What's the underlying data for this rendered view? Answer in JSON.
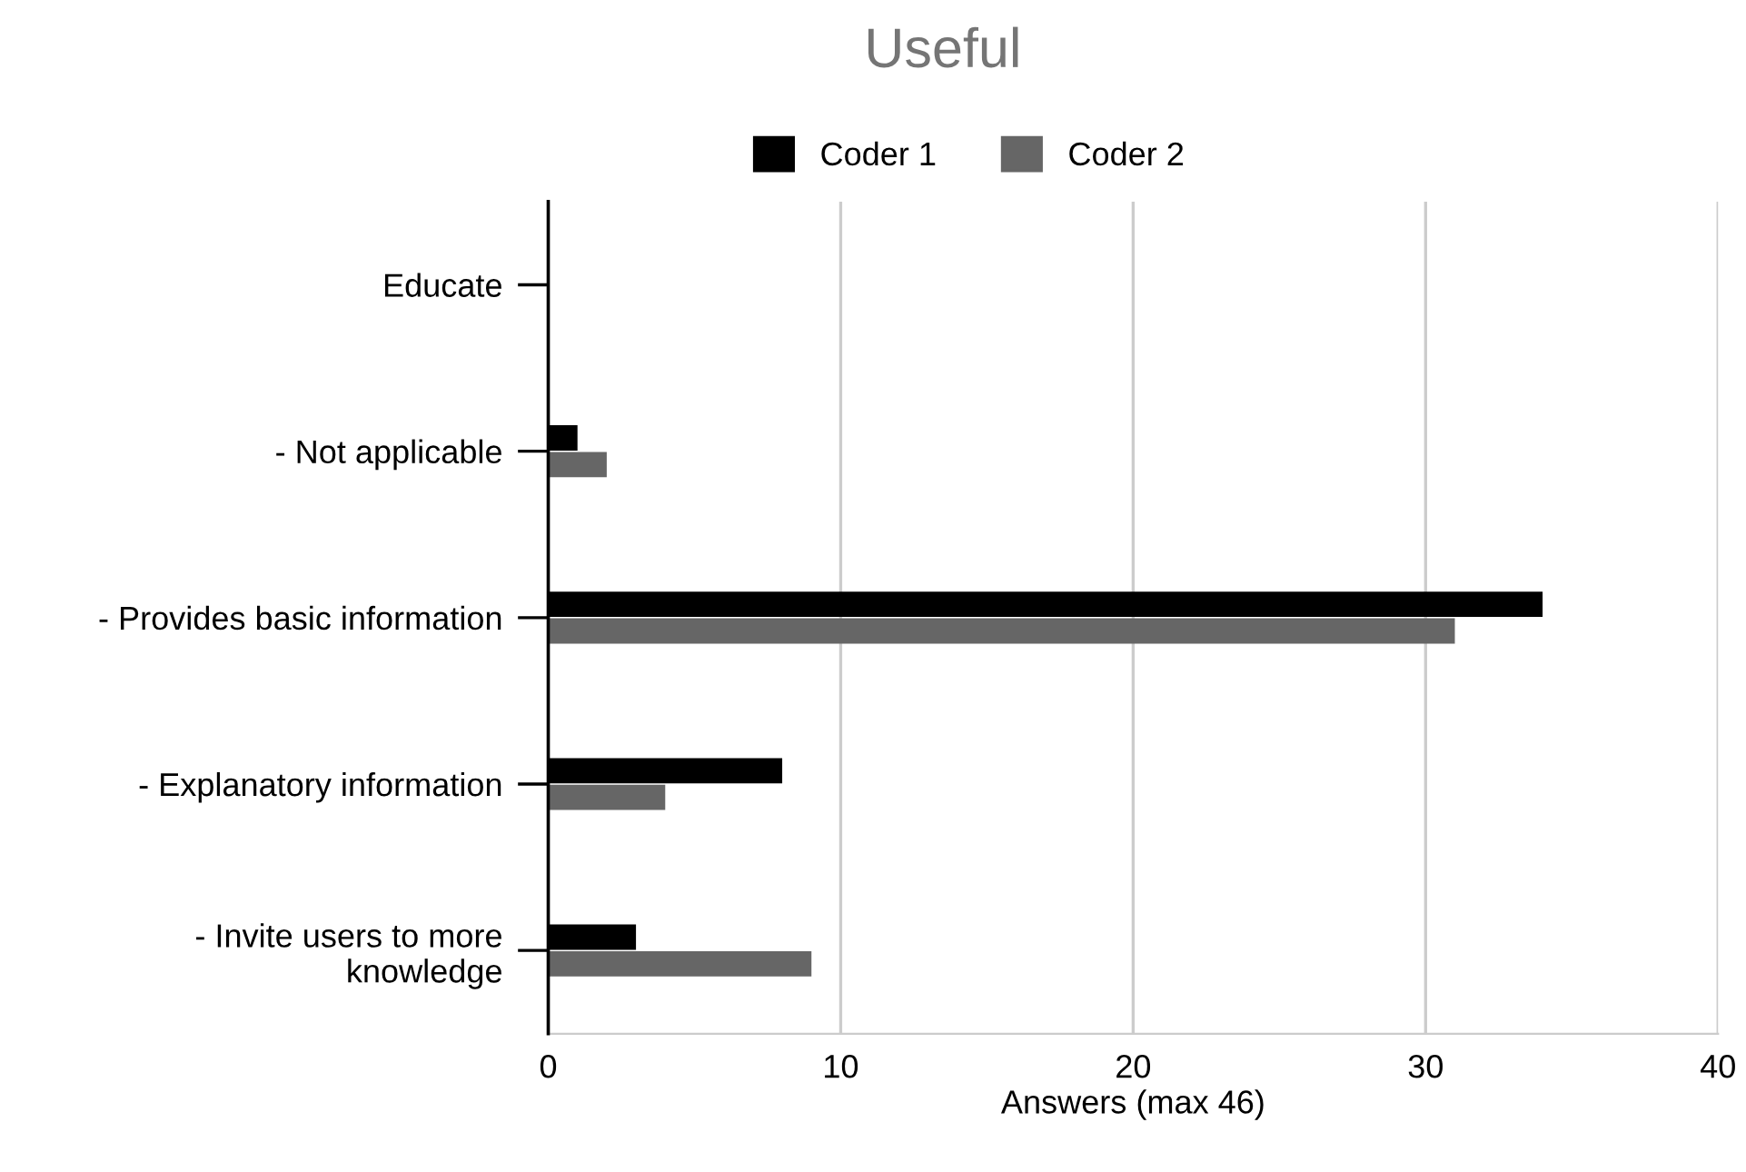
{
  "chart_data": {
    "type": "bar",
    "orientation": "horizontal",
    "title": "Useful",
    "xlabel": "Answers (max 46)",
    "categories": [
      "Educate",
      "- Not applicable",
      "- Provides basic information",
      "- Explanatory information",
      "- Invite users to more\nknowledge"
    ],
    "series": [
      {
        "name": "Coder 1",
        "color": "#000000",
        "values": [
          null,
          1,
          34,
          8,
          3
        ]
      },
      {
        "name": "Coder 2",
        "color": "#666666",
        "values": [
          null,
          2,
          31,
          4,
          9
        ]
      }
    ],
    "xlim": [
      0,
      40
    ],
    "xticks": [
      0,
      10,
      20,
      30,
      40
    ],
    "grid": "x",
    "legend": "top"
  }
}
